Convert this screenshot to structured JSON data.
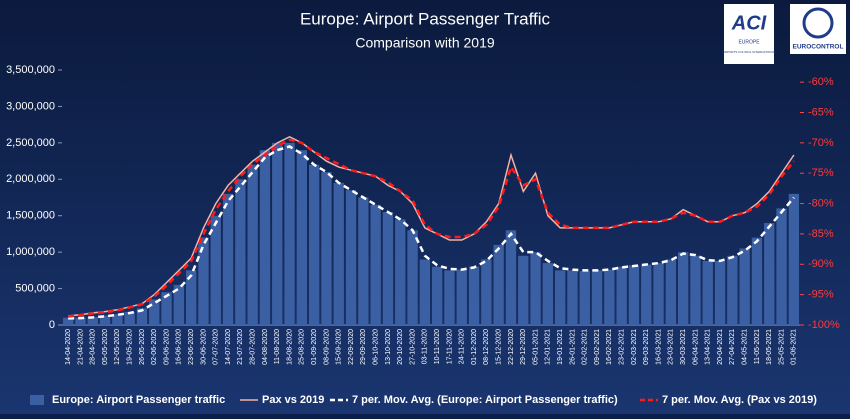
{
  "chart_data": {
    "type": "bar",
    "title": "Europe: Airport Passenger Traffic",
    "subtitle": "Comparison with 2019",
    "logos": {
      "aci": "ACI",
      "aci_region": "EUROPE",
      "aci_name": "AIRPORTS COUNCIL INTERNATIONAL",
      "eurocontrol": "EUROCONTROL"
    },
    "categories": [
      "14-04-2020",
      "21-04-2020",
      "28-04-2020",
      "05-05-2020",
      "12-05-2020",
      "19-05-2020",
      "26-05-2020",
      "02-06-2020",
      "09-06-2020",
      "16-06-2020",
      "23-06-2020",
      "30-06-2020",
      "07-07-2020",
      "14-07-2020",
      "21-07-2020",
      "28-07-2020",
      "04-08-2020",
      "11-08-2020",
      "18-08-2020",
      "25-08-2020",
      "01-09-2020",
      "08-09-2020",
      "15-09-2020",
      "22-09-2020",
      "29-09-2020",
      "06-10-2020",
      "13-10-2020",
      "20-10-2020",
      "27-10-2020",
      "03-11-2020",
      "10-11-2020",
      "17-11-2020",
      "24-11-2020",
      "01-12-2020",
      "08-12-2020",
      "15-12-2020",
      "22-12-2020",
      "29-12-2020",
      "05-01-2021",
      "12-01-2021",
      "19-01-2021",
      "26-01-2021",
      "02-02-2021",
      "09-02-2021",
      "16-02-2021",
      "23-02-2021",
      "02-03-2021",
      "09-03-2021",
      "16-03-2021",
      "23-03-2021",
      "30-03-2021",
      "06-04-2021",
      "13-04-2021",
      "20-04-2021",
      "27-04-2021",
      "04-05-2021",
      "11-05-2021",
      "18-05-2021",
      "25-05-2021",
      "01-06-2021"
    ],
    "series": [
      {
        "name": "Europe: Airport Passenger traffic",
        "type": "bar",
        "color": "#3b5fa3",
        "values": [
          100000,
          100000,
          110000,
          130000,
          150000,
          180000,
          230000,
          350000,
          450000,
          550000,
          750000,
          1200000,
          1500000,
          1800000,
          2000000,
          2200000,
          2400000,
          2500000,
          2500000,
          2400000,
          2200000,
          2100000,
          1950000,
          1850000,
          1750000,
          1650000,
          1550000,
          1450000,
          1300000,
          900000,
          800000,
          750000,
          760000,
          800000,
          900000,
          1100000,
          1300000,
          950000,
          1000000,
          850000,
          750000,
          750000,
          740000,
          750000,
          760000,
          800000,
          820000,
          830000,
          850000,
          900000,
          1000000,
          950000,
          880000,
          880000,
          950000,
          1050000,
          1200000,
          1400000,
          1600000,
          1800000
        ]
      },
      {
        "name": "Pax vs 2019",
        "type": "line",
        "axis": "y2",
        "color": "#f2b3a6",
        "values": [
          -98.5,
          -98.3,
          -98,
          -97.8,
          -97.5,
          -97,
          -96.5,
          -95,
          -93,
          -91,
          -89,
          -84,
          -80,
          -77,
          -75,
          -73,
          -71.5,
          -70,
          -69,
          -70,
          -71.5,
          -73,
          -74,
          -74.5,
          -75,
          -75.5,
          -77,
          -78,
          -80,
          -84,
          -85,
          -86,
          -86,
          -85,
          -83,
          -80,
          -72,
          -78,
          -75,
          -82,
          -84,
          -84,
          -84,
          -84,
          -84,
          -83.5,
          -83,
          -83,
          -83,
          -82.5,
          -81,
          -82,
          -83,
          -83,
          -82,
          -81.5,
          -80,
          -78,
          -75,
          -72
        ]
      },
      {
        "name": "7 per. Mov. Avg. (Europe: Airport Passenger traffic)",
        "type": "dashed",
        "color": "#ffffff",
        "values": [
          90000,
          95000,
          105000,
          120000,
          140000,
          165000,
          200000,
          300000,
          400000,
          500000,
          680000,
          1100000,
          1400000,
          1700000,
          1900000,
          2100000,
          2300000,
          2400000,
          2450000,
          2350000,
          2200000,
          2100000,
          1950000,
          1850000,
          1750000,
          1650000,
          1550000,
          1450000,
          1300000,
          950000,
          820000,
          770000,
          760000,
          790000,
          880000,
          1050000,
          1250000,
          1000000,
          1000000,
          880000,
          780000,
          760000,
          750000,
          750000,
          760000,
          790000,
          810000,
          830000,
          850000,
          890000,
          980000,
          960000,
          890000,
          880000,
          930000,
          1020000,
          1150000,
          1350000,
          1550000,
          1750000
        ]
      },
      {
        "name": "7 per. Mov. Avg. (Pax vs 2019)",
        "type": "dashed",
        "axis": "y2",
        "color": "#ff1a1a",
        "values": [
          -98.6,
          -98.4,
          -98.1,
          -97.9,
          -97.6,
          -97.1,
          -96.6,
          -95.3,
          -93.5,
          -91.5,
          -89.5,
          -85,
          -81,
          -78,
          -75.5,
          -73.5,
          -72,
          -70.5,
          -69.5,
          -70,
          -71.5,
          -72.5,
          -73.5,
          -74.5,
          -75,
          -75.5,
          -76.5,
          -78,
          -79.5,
          -83.5,
          -85,
          -85.5,
          -85.5,
          -85,
          -83.5,
          -80.5,
          -74,
          -77,
          -76,
          -81.5,
          -83.5,
          -84,
          -84,
          -84,
          -84,
          -83.5,
          -83,
          -83,
          -83,
          -82.5,
          -81.5,
          -82,
          -83,
          -83,
          -82,
          -81.5,
          -80.5,
          -78.5,
          -75.5,
          -73
        ]
      }
    ],
    "ylim": [
      0,
      3500000
    ],
    "yticks": [
      0,
      {
        "value": 500000,
        "label": "500,000"
      },
      {
        "value": 1000000,
        "label": "1,000,000"
      },
      {
        "value": 1500000,
        "label": "1,500,000"
      },
      {
        "value": 2000000,
        "label": "2,000,000"
      },
      {
        "value": 2500000,
        "label": "2,500,000"
      },
      {
        "value": 3000000,
        "label": "3,000,000"
      },
      {
        "value": 3500000,
        "label": "3,500,000"
      }
    ],
    "y2lim": [
      -100,
      -58
    ],
    "y2ticks": [
      {
        "value": -100,
        "label": "-100%"
      },
      {
        "value": -95,
        "label": "-95%"
      },
      {
        "value": -90,
        "label": "-90%"
      },
      {
        "value": -85,
        "label": "-85%"
      },
      {
        "value": -80,
        "label": "-80%"
      },
      {
        "value": -75,
        "label": "-75%"
      },
      {
        "value": -70,
        "label": "-70%"
      },
      {
        "value": -65,
        "label": "-65%"
      },
      {
        "value": -60,
        "label": "-60%"
      }
    ],
    "legend": "bottom"
  }
}
